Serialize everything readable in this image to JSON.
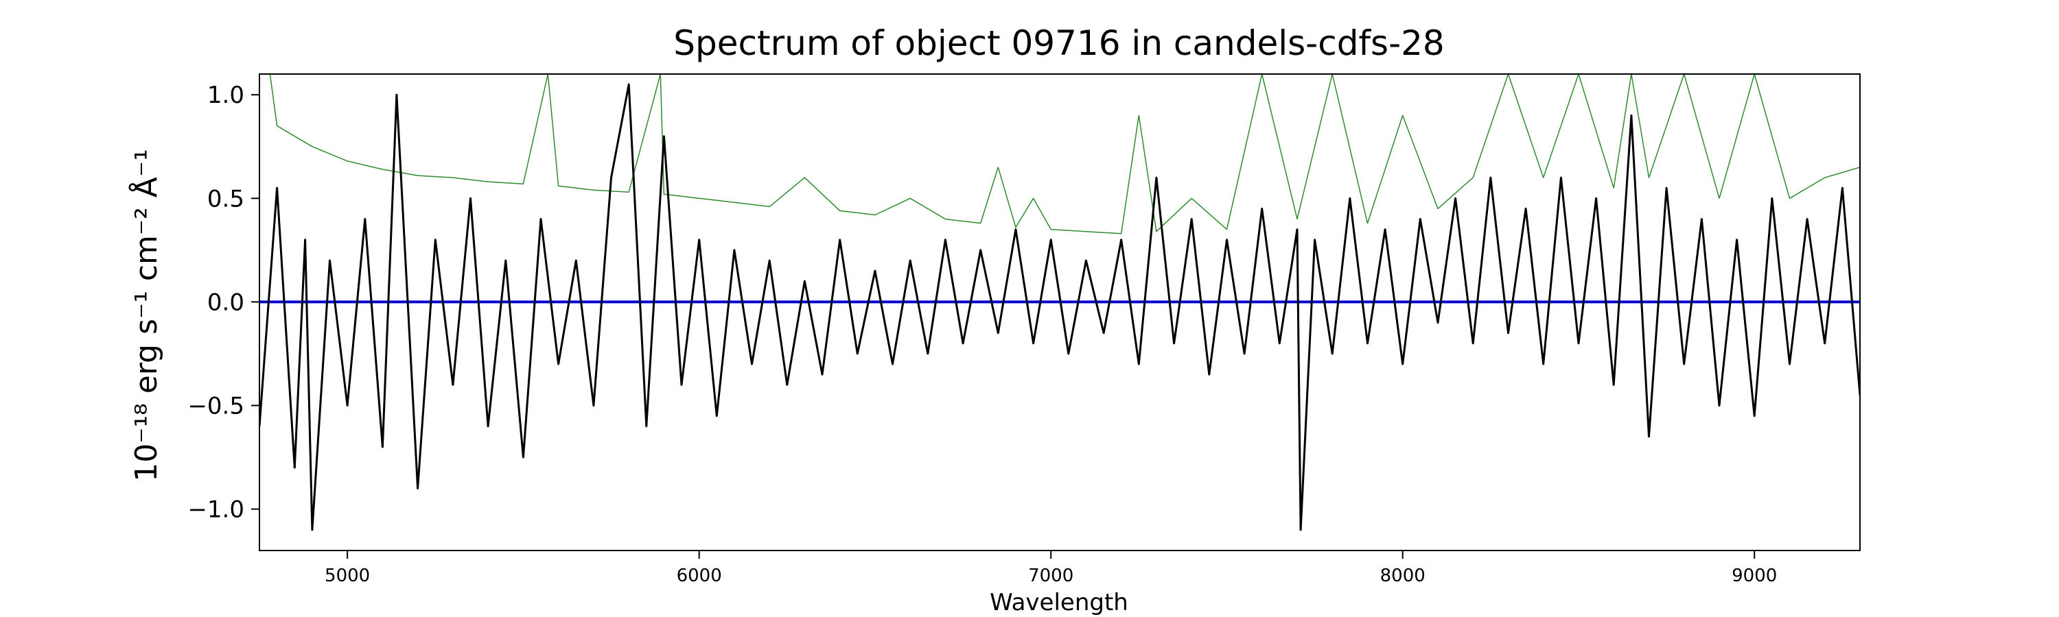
{
  "chart_data": {
    "type": "line",
    "title": "Spectrum of object 09716 in candels-cdfs-28",
    "xlabel": "Wavelength",
    "ylabel": "10⁻¹⁸ erg s⁻¹ cm⁻² Å⁻¹",
    "xlim": [
      4750,
      9300
    ],
    "ylim": [
      -1.2,
      1.1
    ],
    "x_ticks": [
      5000,
      6000,
      7000,
      8000,
      9000
    ],
    "x_tick_labels": [
      "5000",
      "6000",
      "7000",
      "8000",
      "9000"
    ],
    "y_ticks": [
      -1.0,
      -0.5,
      0.0,
      0.5,
      1.0
    ],
    "y_tick_labels": [
      "−1.0",
      "−0.5",
      "0.0",
      "0.5",
      "1.0"
    ],
    "grid": false,
    "colors": {
      "flux": "#000000",
      "error": "#2e8b2e",
      "zero": "#0000cc"
    },
    "series": [
      {
        "role": "flux",
        "x": [
          4750,
          4800,
          4850,
          4880,
          4900,
          4950,
          5000,
          5050,
          5100,
          5140,
          5200,
          5250,
          5300,
          5350,
          5400,
          5450,
          5500,
          5550,
          5600,
          5650,
          5700,
          5750,
          5800,
          5850,
          5900,
          5950,
          6000,
          6050,
          6100,
          6150,
          6200,
          6250,
          6300,
          6350,
          6400,
          6450,
          6500,
          6550,
          6600,
          6650,
          6700,
          6750,
          6800,
          6850,
          6900,
          6950,
          7000,
          7050,
          7100,
          7150,
          7200,
          7250,
          7300,
          7350,
          7400,
          7450,
          7500,
          7550,
          7600,
          7650,
          7700,
          7710,
          7750,
          7800,
          7850,
          7900,
          7950,
          8000,
          8050,
          8100,
          8150,
          8200,
          8250,
          8300,
          8350,
          8400,
          8450,
          8500,
          8550,
          8600,
          8650,
          8700,
          8750,
          8800,
          8850,
          8900,
          8950,
          9000,
          9050,
          9100,
          9150,
          9200,
          9250,
          9300
        ],
        "y": [
          -0.6,
          0.55,
          -0.8,
          0.3,
          -1.1,
          0.2,
          -0.5,
          0.4,
          -0.7,
          1.0,
          -0.9,
          0.3,
          -0.4,
          0.5,
          -0.6,
          0.2,
          -0.75,
          0.4,
          -0.3,
          0.2,
          -0.5,
          0.6,
          1.05,
          -0.6,
          0.8,
          -0.4,
          0.3,
          -0.55,
          0.25,
          -0.3,
          0.2,
          -0.4,
          0.1,
          -0.35,
          0.3,
          -0.25,
          0.15,
          -0.3,
          0.2,
          -0.25,
          0.3,
          -0.2,
          0.25,
          -0.15,
          0.35,
          -0.2,
          0.3,
          -0.25,
          0.2,
          -0.15,
          0.3,
          -0.3,
          0.6,
          -0.2,
          0.4,
          -0.35,
          0.3,
          -0.25,
          0.45,
          -0.2,
          0.35,
          -1.1,
          0.3,
          -0.25,
          0.5,
          -0.2,
          0.35,
          -0.3,
          0.4,
          -0.1,
          0.5,
          -0.2,
          0.6,
          -0.15,
          0.45,
          -0.3,
          0.6,
          -0.2,
          0.5,
          -0.4,
          0.9,
          -0.65,
          0.55,
          -0.3,
          0.4,
          -0.5,
          0.3,
          -0.55,
          0.5,
          -0.3,
          0.4,
          -0.2,
          0.55,
          -0.45
        ]
      },
      {
        "role": "error",
        "x": [
          4750,
          4780,
          4800,
          4850,
          4900,
          5000,
          5100,
          5200,
          5300,
          5400,
          5500,
          5570,
          5600,
          5700,
          5800,
          5890,
          5900,
          6000,
          6100,
          6200,
          6300,
          6400,
          6500,
          6600,
          6700,
          6800,
          6850,
          6900,
          6950,
          7000,
          7100,
          7200,
          7250,
          7300,
          7400,
          7500,
          7600,
          7700,
          7800,
          7900,
          8000,
          8100,
          8200,
          8300,
          8400,
          8500,
          8600,
          8650,
          8700,
          8800,
          8900,
          9000,
          9100,
          9200,
          9300
        ],
        "y": [
          1.1,
          1.1,
          0.85,
          0.8,
          0.75,
          0.68,
          0.64,
          0.61,
          0.6,
          0.58,
          0.57,
          1.1,
          0.56,
          0.54,
          0.53,
          1.1,
          0.52,
          0.5,
          0.48,
          0.46,
          0.6,
          0.44,
          0.42,
          0.5,
          0.4,
          0.38,
          0.65,
          0.36,
          0.5,
          0.35,
          0.34,
          0.33,
          0.9,
          0.34,
          0.5,
          0.35,
          1.1,
          0.4,
          1.1,
          0.38,
          0.9,
          0.45,
          0.6,
          1.1,
          0.6,
          1.1,
          0.55,
          1.1,
          0.6,
          1.1,
          0.5,
          1.1,
          0.5,
          0.6,
          0.65
        ]
      },
      {
        "role": "zero",
        "x": [
          4750,
          9300
        ],
        "y": [
          0.0,
          0.0
        ]
      }
    ]
  }
}
